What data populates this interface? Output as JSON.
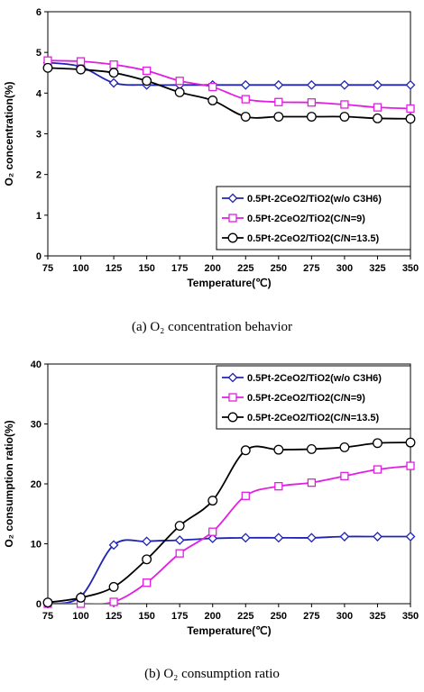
{
  "charts": [
    {
      "caption": "(a)  O₂  concentration  behavior",
      "chart_data": {
        "type": "line",
        "xlabel": "Temperature(℃)",
        "ylabel": "O₂ concentration(%)",
        "x": [
          75,
          100,
          125,
          150,
          175,
          200,
          225,
          250,
          275,
          300,
          325,
          350
        ],
        "xlim": [
          75,
          350
        ],
        "ylim": [
          0,
          6
        ],
        "yticks": [
          0,
          1,
          2,
          3,
          4,
          5,
          6
        ],
        "legend_position": "center-right",
        "series": [
          {
            "name": "0.5Pt-2CeO2/TiO2(w/o C3H6)",
            "color": "#1f24b4",
            "marker": "diamond",
            "values": [
              4.75,
              4.65,
              4.25,
              4.2,
              4.2,
              4.2,
              4.2,
              4.2,
              4.2,
              4.2,
              4.2,
              4.2
            ]
          },
          {
            "name": "0.5Pt-2CeO2/TiO2(C/N=9)",
            "color": "#e11ee1",
            "marker": "square",
            "values": [
              4.8,
              4.78,
              4.7,
              4.55,
              4.3,
              4.15,
              3.85,
              3.78,
              3.77,
              3.72,
              3.65,
              3.62
            ]
          },
          {
            "name": "0.5Pt-2CeO2/TiO2(C/N=13.5)",
            "color": "#000000",
            "marker": "circle",
            "values": [
              4.62,
              4.58,
              4.5,
              4.3,
              4.02,
              3.82,
              3.42,
              3.42,
              3.42,
              3.42,
              3.38,
              3.37
            ]
          }
        ]
      }
    },
    {
      "caption": "(b)  O₂  consumption  ratio",
      "chart_data": {
        "type": "line",
        "xlabel": "Temperature(℃)",
        "ylabel": "O₂ consumption ratio(%)",
        "x": [
          75,
          100,
          125,
          150,
          175,
          200,
          225,
          250,
          275,
          300,
          325,
          350
        ],
        "xlim": [
          75,
          350
        ],
        "ylim": [
          0,
          40
        ],
        "yticks": [
          0,
          10,
          20,
          30,
          40
        ],
        "legend_position": "top-right",
        "series": [
          {
            "name": "0.5Pt-2CeO2/TiO2(w/o C3H6)",
            "color": "#1f24b4",
            "marker": "diamond",
            "values": [
              0,
              1.2,
              9.8,
              10.4,
              10.6,
              10.9,
              11,
              11,
              11,
              11.2,
              11.2,
              11.2
            ]
          },
          {
            "name": "0.5Pt-2CeO2/TiO2(C/N=9)",
            "color": "#e11ee1",
            "marker": "square",
            "values": [
              0,
              0,
              0.3,
              3.5,
              8.4,
              12,
              18,
              19.6,
              20.2,
              21.3,
              22.4,
              23
            ]
          },
          {
            "name": "0.5Pt-2CeO2/TiO2(C/N=13.5)",
            "color": "#000000",
            "marker": "circle",
            "values": [
              0.2,
              1,
              2.8,
              7.4,
              13,
              17.2,
              25.6,
              25.7,
              25.8,
              26.1,
              26.8,
              26.9
            ]
          }
        ]
      }
    }
  ]
}
